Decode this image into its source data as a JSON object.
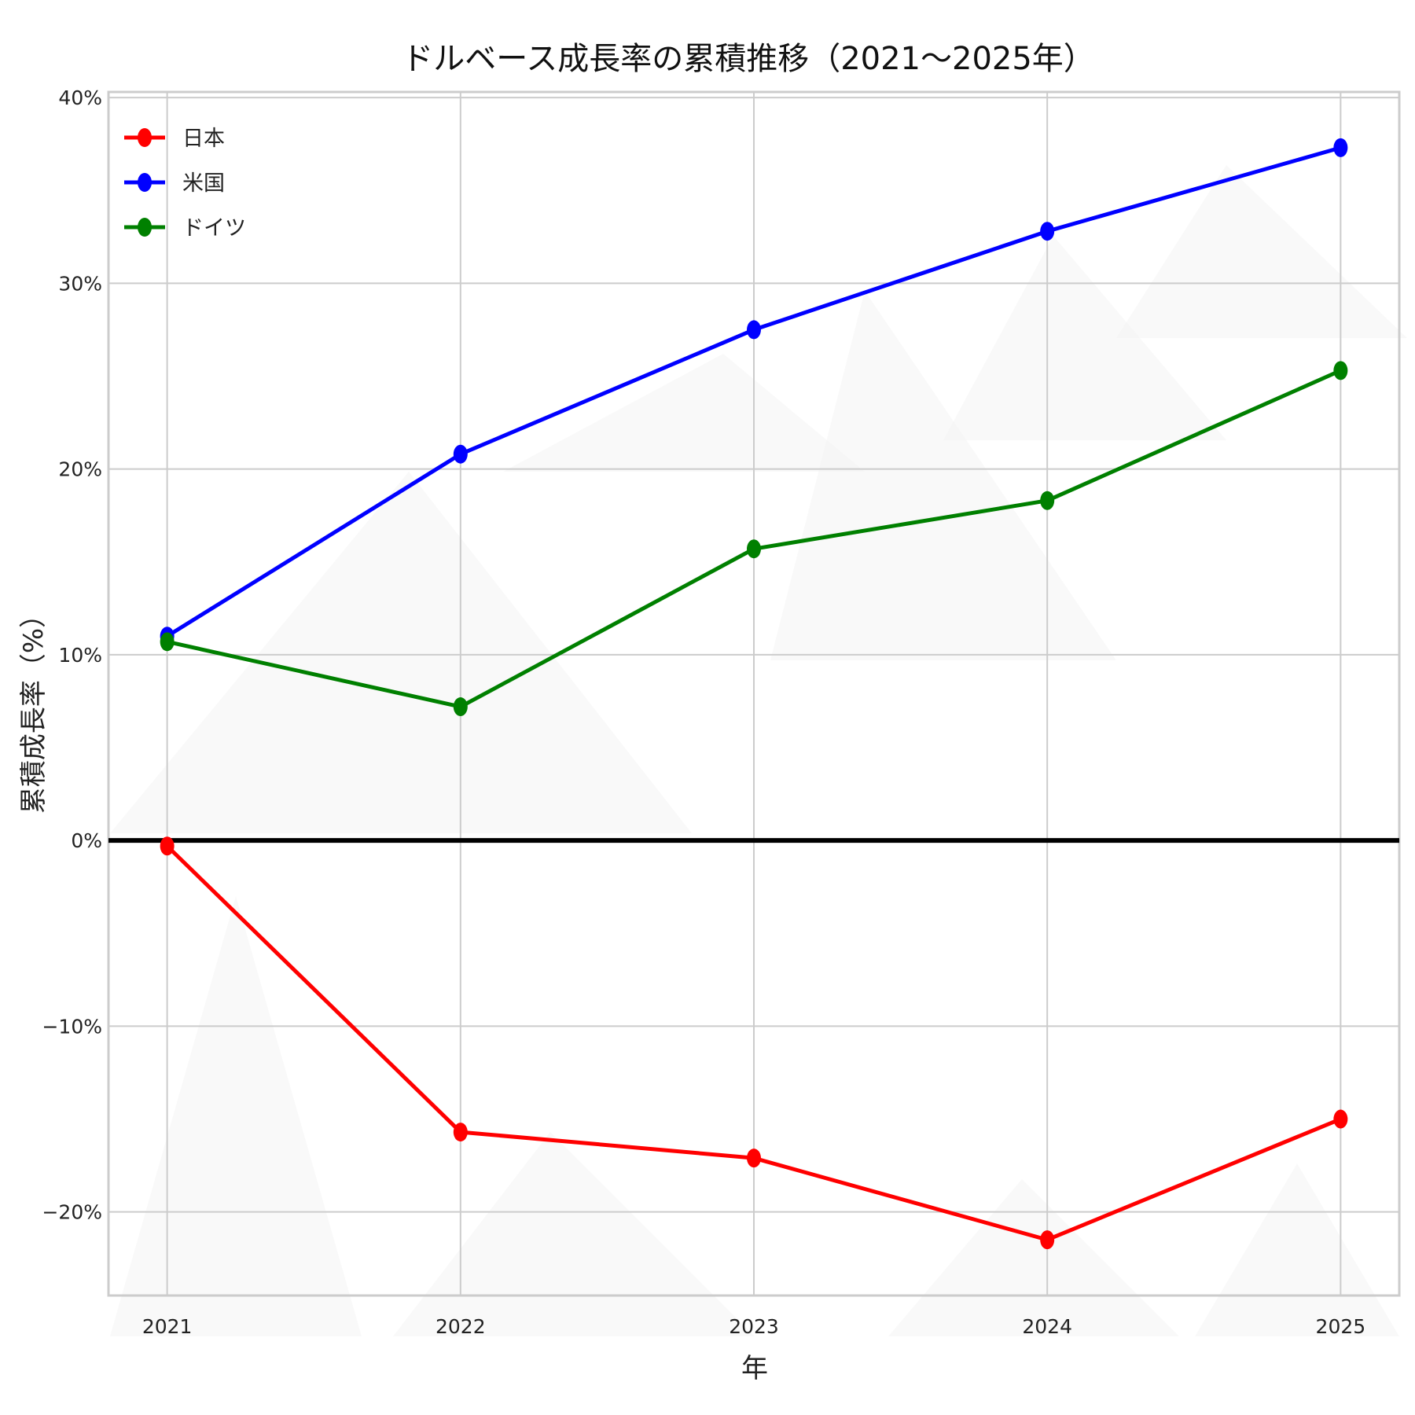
{
  "chart_data": {
    "type": "line",
    "title": "ドルベース成長率の累積推移（2021〜2025年）",
    "xlabel": "年",
    "ylabel": "累積成長率（%）",
    "x": [
      2021,
      2022,
      2023,
      2024,
      2025
    ],
    "x_tick_labels": [
      "2021",
      "2022",
      "2023",
      "2024",
      "2025"
    ],
    "xlim": [
      2020.8,
      2025.2
    ],
    "ylim": [
      -24.5,
      40.3
    ],
    "y_ticks": [
      -20,
      -10,
      0,
      10,
      20,
      30,
      40
    ],
    "y_tick_labels": [
      "−20%",
      "−10%",
      "0%",
      "10%",
      "20%",
      "30%",
      "40%"
    ],
    "grid": true,
    "legend_position": "top-left",
    "series": [
      {
        "name": "日本",
        "color": "#ff0000",
        "values": [
          -0.3,
          -15.7,
          -17.1,
          -21.5,
          -15.0
        ]
      },
      {
        "name": "米国",
        "color": "#0000ff",
        "values": [
          11.0,
          20.8,
          27.5,
          32.8,
          37.3
        ]
      },
      {
        "name": "ドイツ",
        "color": "#008000",
        "values": [
          10.7,
          7.2,
          15.7,
          18.3,
          25.3
        ]
      }
    ],
    "reference_line": {
      "y": 0,
      "color": "#000000"
    }
  }
}
